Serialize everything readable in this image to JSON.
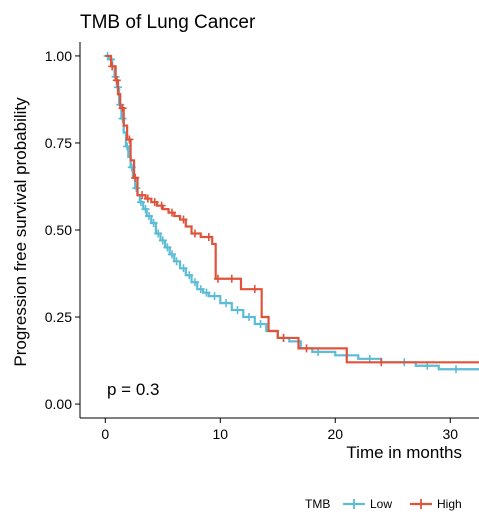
{
  "chart_data": {
    "type": "line",
    "title": "TMB of Lung Cancer",
    "xlabel": "Time in months",
    "ylabel": "Progression free survival probability",
    "xlim": [
      -2.2,
      32.5
    ],
    "ylim": [
      -0.04,
      1.04
    ],
    "xticks": [
      0,
      10,
      20,
      30
    ],
    "yticks": [
      0.0,
      0.25,
      0.5,
      0.75,
      1.0
    ],
    "ytick_labels": [
      "0.00",
      "0.25",
      "0.50",
      "0.75",
      "1.00"
    ],
    "xtick_labels": [
      "0",
      "10",
      "20",
      "30"
    ],
    "annotation": "p = 0.3",
    "grid": false,
    "legend": {
      "title": "TMB",
      "position": "bottom-right"
    },
    "colors": {
      "Low": "#5bbcd6",
      "High": "#e0533a"
    },
    "series": [
      {
        "name": "Low",
        "step_points": [
          [
            0,
            1.0
          ],
          [
            0.3,
            0.99
          ],
          [
            0.6,
            0.97
          ],
          [
            0.8,
            0.94
          ],
          [
            1.0,
            0.91
          ],
          [
            1.2,
            0.86
          ],
          [
            1.4,
            0.82
          ],
          [
            1.6,
            0.78
          ],
          [
            1.8,
            0.74
          ],
          [
            2.0,
            0.71
          ],
          [
            2.2,
            0.68
          ],
          [
            2.4,
            0.65
          ],
          [
            2.6,
            0.62
          ],
          [
            2.8,
            0.6
          ],
          [
            3.0,
            0.58
          ],
          [
            3.3,
            0.56
          ],
          [
            3.6,
            0.54
          ],
          [
            4.0,
            0.52
          ],
          [
            4.4,
            0.49
          ],
          [
            4.8,
            0.47
          ],
          [
            5.2,
            0.45
          ],
          [
            5.6,
            0.43
          ],
          [
            6.0,
            0.41
          ],
          [
            6.5,
            0.39
          ],
          [
            7.0,
            0.37
          ],
          [
            7.5,
            0.35
          ],
          [
            8.0,
            0.33
          ],
          [
            8.5,
            0.32
          ],
          [
            9.0,
            0.31
          ],
          [
            10.0,
            0.29
          ],
          [
            11.0,
            0.27
          ],
          [
            12.0,
            0.25
          ],
          [
            13.0,
            0.23
          ],
          [
            14.0,
            0.21
          ],
          [
            15.0,
            0.19
          ],
          [
            16.0,
            0.18
          ],
          [
            17.0,
            0.16
          ],
          [
            18.0,
            0.15
          ],
          [
            20.0,
            0.14
          ],
          [
            22.0,
            0.13
          ],
          [
            24.0,
            0.12
          ],
          [
            27.0,
            0.11
          ],
          [
            29.0,
            0.1
          ],
          [
            32.5,
            0.1
          ]
        ],
        "censor": [
          [
            0.2,
            1.0
          ],
          [
            0.5,
            0.99
          ],
          [
            0.9,
            0.94
          ],
          [
            1.1,
            0.91
          ],
          [
            1.3,
            0.86
          ],
          [
            1.5,
            0.82
          ],
          [
            1.9,
            0.74
          ],
          [
            2.3,
            0.68
          ],
          [
            2.7,
            0.62
          ],
          [
            3.1,
            0.58
          ],
          [
            3.5,
            0.56
          ],
          [
            3.8,
            0.54
          ],
          [
            4.2,
            0.52
          ],
          [
            4.6,
            0.49
          ],
          [
            5.0,
            0.47
          ],
          [
            5.4,
            0.45
          ],
          [
            5.8,
            0.43
          ],
          [
            6.2,
            0.41
          ],
          [
            6.8,
            0.39
          ],
          [
            7.3,
            0.37
          ],
          [
            7.8,
            0.35
          ],
          [
            8.3,
            0.33
          ],
          [
            8.8,
            0.32
          ],
          [
            9.5,
            0.31
          ],
          [
            10.5,
            0.29
          ],
          [
            11.5,
            0.27
          ],
          [
            12.5,
            0.25
          ],
          [
            13.5,
            0.23
          ],
          [
            15.5,
            0.19
          ],
          [
            18.5,
            0.15
          ],
          [
            21.0,
            0.14
          ],
          [
            23.0,
            0.13
          ],
          [
            26.0,
            0.12
          ],
          [
            28.0,
            0.11
          ],
          [
            30.5,
            0.1
          ]
        ]
      },
      {
        "name": "High",
        "step_points": [
          [
            0,
            1.0
          ],
          [
            0.5,
            0.97
          ],
          [
            0.9,
            0.93
          ],
          [
            1.1,
            0.89
          ],
          [
            1.3,
            0.85
          ],
          [
            1.6,
            0.8
          ],
          [
            1.9,
            0.76
          ],
          [
            2.2,
            0.7
          ],
          [
            2.5,
            0.65
          ],
          [
            2.8,
            0.6
          ],
          [
            3.5,
            0.59
          ],
          [
            4.0,
            0.58
          ],
          [
            4.5,
            0.57
          ],
          [
            5.0,
            0.56
          ],
          [
            5.5,
            0.55
          ],
          [
            6.0,
            0.54
          ],
          [
            6.5,
            0.53
          ],
          [
            7.0,
            0.51
          ],
          [
            7.5,
            0.49
          ],
          [
            8.3,
            0.48
          ],
          [
            9.3,
            0.46
          ],
          [
            9.6,
            0.36
          ],
          [
            10.5,
            0.36
          ],
          [
            11.8,
            0.33
          ],
          [
            13.3,
            0.33
          ],
          [
            13.6,
            0.25
          ],
          [
            14.2,
            0.21
          ],
          [
            15.0,
            0.19
          ],
          [
            16.8,
            0.16
          ],
          [
            20.0,
            0.16
          ],
          [
            21.0,
            0.12
          ],
          [
            32.5,
            0.12
          ]
        ],
        "censor": [
          [
            0.6,
            0.97
          ],
          [
            1.0,
            0.93
          ],
          [
            1.5,
            0.85
          ],
          [
            2.1,
            0.76
          ],
          [
            2.6,
            0.65
          ],
          [
            3.2,
            0.6
          ],
          [
            3.7,
            0.59
          ],
          [
            4.3,
            0.58
          ],
          [
            4.9,
            0.57
          ],
          [
            5.8,
            0.55
          ],
          [
            6.8,
            0.53
          ],
          [
            7.8,
            0.49
          ],
          [
            9.0,
            0.48
          ],
          [
            9.8,
            0.36
          ],
          [
            11.0,
            0.36
          ],
          [
            13.0,
            0.33
          ],
          [
            15.5,
            0.19
          ],
          [
            17.5,
            0.16
          ],
          [
            24.0,
            0.12
          ]
        ]
      }
    ]
  }
}
